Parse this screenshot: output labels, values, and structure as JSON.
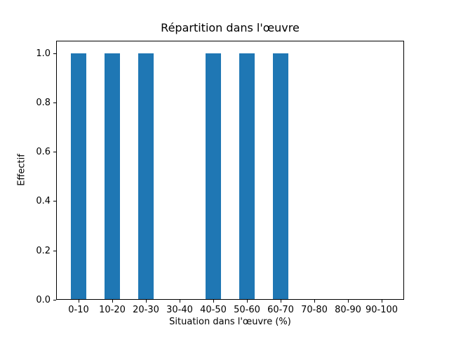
{
  "chart_data": {
    "type": "bar",
    "title": "Répartition dans l'œuvre",
    "xlabel": "Situation dans l'œuvre (%)",
    "ylabel": "Effectif",
    "categories": [
      "0-10",
      "10-20",
      "20-30",
      "30-40",
      "40-50",
      "50-60",
      "60-70",
      "70-80",
      "80-90",
      "90-100"
    ],
    "values": [
      1,
      1,
      1,
      0,
      1,
      1,
      1,
      0,
      0,
      0
    ],
    "ytick_labels": [
      "0.0",
      "0.2",
      "0.4",
      "0.6",
      "0.8",
      "1.0"
    ],
    "ylim": [
      0,
      1.05
    ],
    "bar_color": "#1f77b4",
    "grid": "off",
    "legend": "none",
    "background_color": "#ffffff"
  }
}
